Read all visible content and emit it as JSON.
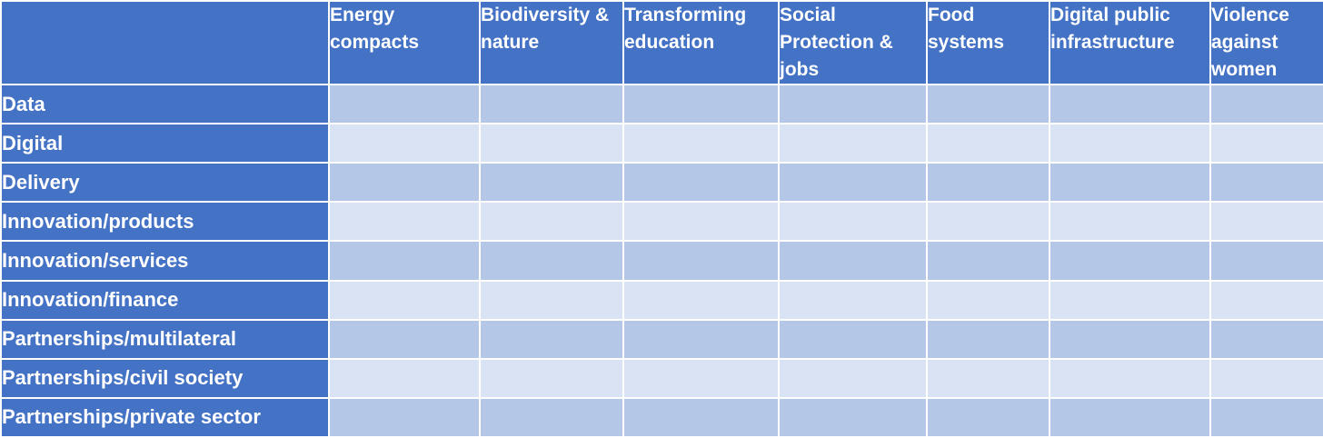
{
  "table": {
    "columns": [
      "Energy compacts",
      "Biodiversity & nature",
      "Transforming education",
      "Social Protection & jobs",
      "Food systems",
      "Digital public infrastructure",
      "Violence against women"
    ],
    "rows": [
      "Data",
      "Digital",
      "Delivery",
      "Innovation/products",
      "Innovation/services",
      "Innovation/finance",
      "Partnerships/multilateral",
      "Partnerships/civil society",
      "Partnerships/private sector"
    ],
    "colors": {
      "header": "#4472c4",
      "band_dark": "#b4c7e7",
      "band_light": "#dae3f3"
    }
  }
}
